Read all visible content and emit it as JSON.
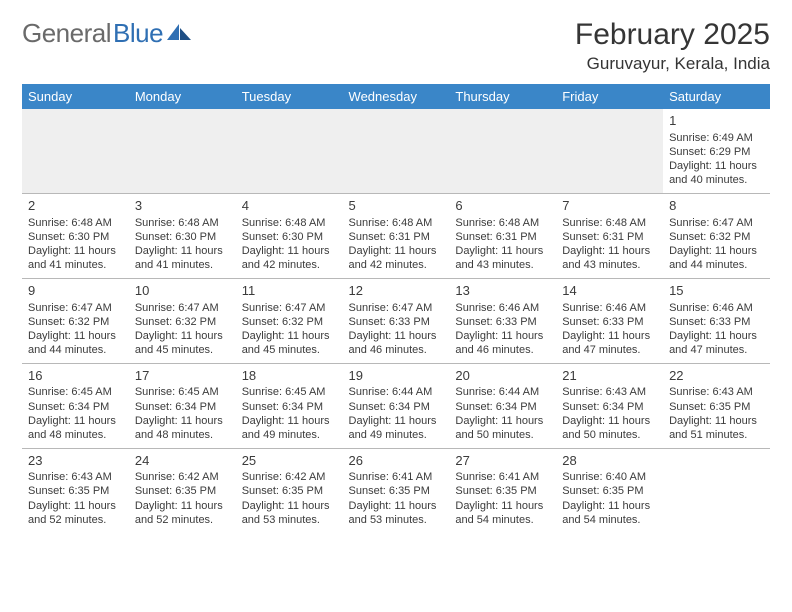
{
  "logo": {
    "part1": "General",
    "part2": "Blue"
  },
  "title": "February 2025",
  "location": "Guruvayur, Kerala, India",
  "colors": {
    "header_bg": "#3a86c8",
    "header_text": "#ffffff",
    "logo_gray": "#6a6a6a",
    "logo_blue": "#2f6fb3",
    "grid_line": "#b8b8b8",
    "blank_row_bg": "#efefef",
    "text": "#3b3b3b",
    "page_bg": "#ffffff"
  },
  "day_headers": [
    "Sunday",
    "Monday",
    "Tuesday",
    "Wednesday",
    "Thursday",
    "Friday",
    "Saturday"
  ],
  "weeks": [
    [
      {
        "empty": true
      },
      {
        "empty": true
      },
      {
        "empty": true
      },
      {
        "empty": true
      },
      {
        "empty": true
      },
      {
        "empty": true
      },
      {
        "n": "1",
        "sunrise": "Sunrise: 6:49 AM",
        "sunset": "Sunset: 6:29 PM",
        "daylight": "Daylight: 11 hours and 40 minutes."
      }
    ],
    [
      {
        "n": "2",
        "sunrise": "Sunrise: 6:48 AM",
        "sunset": "Sunset: 6:30 PM",
        "daylight": "Daylight: 11 hours and 41 minutes."
      },
      {
        "n": "3",
        "sunrise": "Sunrise: 6:48 AM",
        "sunset": "Sunset: 6:30 PM",
        "daylight": "Daylight: 11 hours and 41 minutes."
      },
      {
        "n": "4",
        "sunrise": "Sunrise: 6:48 AM",
        "sunset": "Sunset: 6:30 PM",
        "daylight": "Daylight: 11 hours and 42 minutes."
      },
      {
        "n": "5",
        "sunrise": "Sunrise: 6:48 AM",
        "sunset": "Sunset: 6:31 PM",
        "daylight": "Daylight: 11 hours and 42 minutes."
      },
      {
        "n": "6",
        "sunrise": "Sunrise: 6:48 AM",
        "sunset": "Sunset: 6:31 PM",
        "daylight": "Daylight: 11 hours and 43 minutes."
      },
      {
        "n": "7",
        "sunrise": "Sunrise: 6:48 AM",
        "sunset": "Sunset: 6:31 PM",
        "daylight": "Daylight: 11 hours and 43 minutes."
      },
      {
        "n": "8",
        "sunrise": "Sunrise: 6:47 AM",
        "sunset": "Sunset: 6:32 PM",
        "daylight": "Daylight: 11 hours and 44 minutes."
      }
    ],
    [
      {
        "n": "9",
        "sunrise": "Sunrise: 6:47 AM",
        "sunset": "Sunset: 6:32 PM",
        "daylight": "Daylight: 11 hours and 44 minutes."
      },
      {
        "n": "10",
        "sunrise": "Sunrise: 6:47 AM",
        "sunset": "Sunset: 6:32 PM",
        "daylight": "Daylight: 11 hours and 45 minutes."
      },
      {
        "n": "11",
        "sunrise": "Sunrise: 6:47 AM",
        "sunset": "Sunset: 6:32 PM",
        "daylight": "Daylight: 11 hours and 45 minutes."
      },
      {
        "n": "12",
        "sunrise": "Sunrise: 6:47 AM",
        "sunset": "Sunset: 6:33 PM",
        "daylight": "Daylight: 11 hours and 46 minutes."
      },
      {
        "n": "13",
        "sunrise": "Sunrise: 6:46 AM",
        "sunset": "Sunset: 6:33 PM",
        "daylight": "Daylight: 11 hours and 46 minutes."
      },
      {
        "n": "14",
        "sunrise": "Sunrise: 6:46 AM",
        "sunset": "Sunset: 6:33 PM",
        "daylight": "Daylight: 11 hours and 47 minutes."
      },
      {
        "n": "15",
        "sunrise": "Sunrise: 6:46 AM",
        "sunset": "Sunset: 6:33 PM",
        "daylight": "Daylight: 11 hours and 47 minutes."
      }
    ],
    [
      {
        "n": "16",
        "sunrise": "Sunrise: 6:45 AM",
        "sunset": "Sunset: 6:34 PM",
        "daylight": "Daylight: 11 hours and 48 minutes."
      },
      {
        "n": "17",
        "sunrise": "Sunrise: 6:45 AM",
        "sunset": "Sunset: 6:34 PM",
        "daylight": "Daylight: 11 hours and 48 minutes."
      },
      {
        "n": "18",
        "sunrise": "Sunrise: 6:45 AM",
        "sunset": "Sunset: 6:34 PM",
        "daylight": "Daylight: 11 hours and 49 minutes."
      },
      {
        "n": "19",
        "sunrise": "Sunrise: 6:44 AM",
        "sunset": "Sunset: 6:34 PM",
        "daylight": "Daylight: 11 hours and 49 minutes."
      },
      {
        "n": "20",
        "sunrise": "Sunrise: 6:44 AM",
        "sunset": "Sunset: 6:34 PM",
        "daylight": "Daylight: 11 hours and 50 minutes."
      },
      {
        "n": "21",
        "sunrise": "Sunrise: 6:43 AM",
        "sunset": "Sunset: 6:34 PM",
        "daylight": "Daylight: 11 hours and 50 minutes."
      },
      {
        "n": "22",
        "sunrise": "Sunrise: 6:43 AM",
        "sunset": "Sunset: 6:35 PM",
        "daylight": "Daylight: 11 hours and 51 minutes."
      }
    ],
    [
      {
        "n": "23",
        "sunrise": "Sunrise: 6:43 AM",
        "sunset": "Sunset: 6:35 PM",
        "daylight": "Daylight: 11 hours and 52 minutes."
      },
      {
        "n": "24",
        "sunrise": "Sunrise: 6:42 AM",
        "sunset": "Sunset: 6:35 PM",
        "daylight": "Daylight: 11 hours and 52 minutes."
      },
      {
        "n": "25",
        "sunrise": "Sunrise: 6:42 AM",
        "sunset": "Sunset: 6:35 PM",
        "daylight": "Daylight: 11 hours and 53 minutes."
      },
      {
        "n": "26",
        "sunrise": "Sunrise: 6:41 AM",
        "sunset": "Sunset: 6:35 PM",
        "daylight": "Daylight: 11 hours and 53 minutes."
      },
      {
        "n": "27",
        "sunrise": "Sunrise: 6:41 AM",
        "sunset": "Sunset: 6:35 PM",
        "daylight": "Daylight: 11 hours and 54 minutes."
      },
      {
        "n": "28",
        "sunrise": "Sunrise: 6:40 AM",
        "sunset": "Sunset: 6:35 PM",
        "daylight": "Daylight: 11 hours and 54 minutes."
      },
      {
        "empty": true
      }
    ]
  ]
}
